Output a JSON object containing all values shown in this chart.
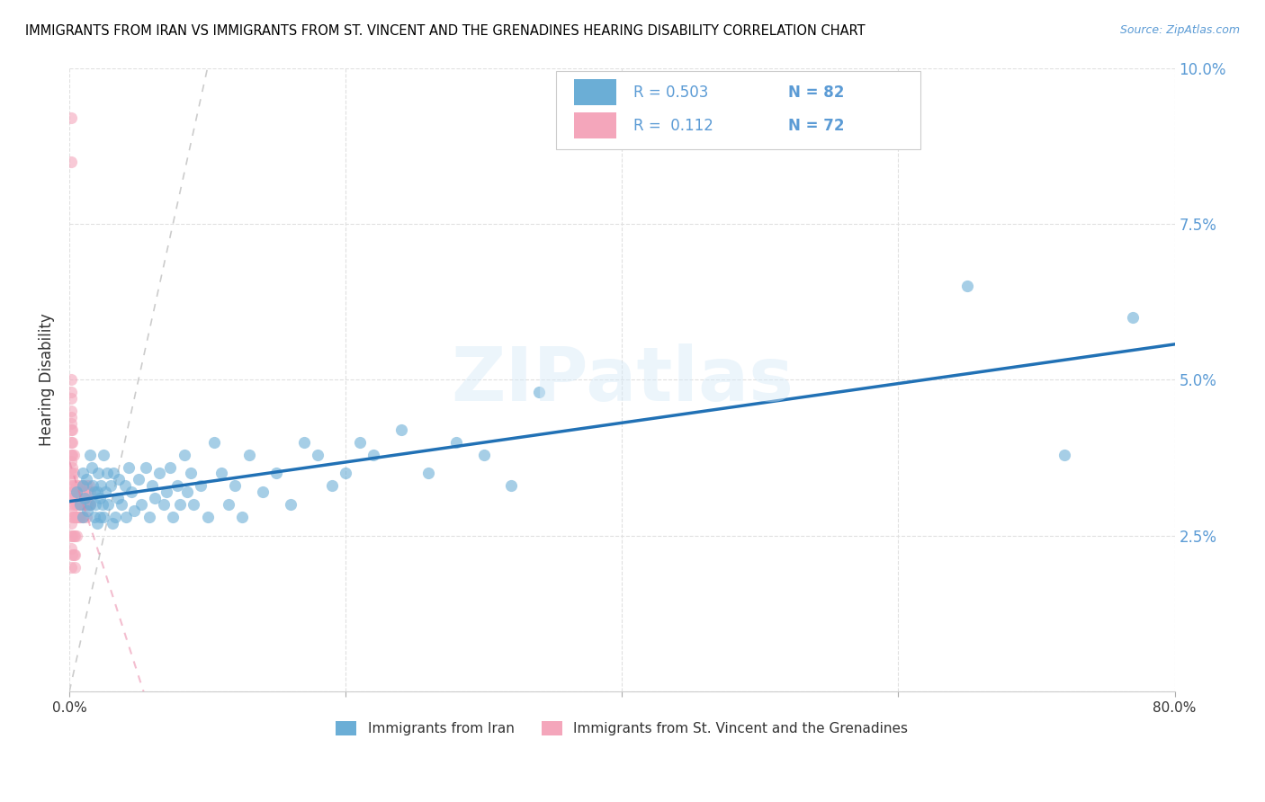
{
  "title": "IMMIGRANTS FROM IRAN VS IMMIGRANTS FROM ST. VINCENT AND THE GRENADINES HEARING DISABILITY CORRELATION CHART",
  "source": "Source: ZipAtlas.com",
  "ylabel": "Hearing Disability",
  "xlabel_blue": "Immigrants from Iran",
  "xlabel_pink": "Immigrants from St. Vincent and the Grenadines",
  "R_blue": 0.503,
  "N_blue": 82,
  "R_pink": 0.112,
  "N_pink": 72,
  "xlim": [
    0.0,
    0.8
  ],
  "ylim": [
    0.0,
    0.1
  ],
  "xticks": [
    0.0,
    0.2,
    0.4,
    0.6,
    0.8
  ],
  "yticks": [
    0.0,
    0.025,
    0.05,
    0.075,
    0.1
  ],
  "xtick_labels": [
    "0.0%",
    "",
    "",
    "",
    "80.0%"
  ],
  "ytick_labels_right": [
    "",
    "2.5%",
    "5.0%",
    "7.5%",
    "10.0%"
  ],
  "color_blue": "#6baed6",
  "color_pink": "#f4a6bb",
  "color_blue_line": "#2171b5",
  "color_pink_line": "#e87ea1",
  "color_diag": "#cccccc",
  "legend_text_color": "#5b9bd5",
  "watermark": "ZIPatlas",
  "blue_x": [
    0.005,
    0.008,
    0.01,
    0.01,
    0.01,
    0.011,
    0.012,
    0.013,
    0.015,
    0.015,
    0.016,
    0.017,
    0.018,
    0.018,
    0.019,
    0.02,
    0.02,
    0.021,
    0.022,
    0.022,
    0.023,
    0.024,
    0.025,
    0.025,
    0.026,
    0.027,
    0.028,
    0.03,
    0.031,
    0.032,
    0.033,
    0.035,
    0.036,
    0.038,
    0.04,
    0.041,
    0.043,
    0.045,
    0.047,
    0.05,
    0.052,
    0.055,
    0.058,
    0.06,
    0.062,
    0.065,
    0.068,
    0.07,
    0.073,
    0.075,
    0.078,
    0.08,
    0.083,
    0.085,
    0.088,
    0.09,
    0.095,
    0.1,
    0.105,
    0.11,
    0.115,
    0.12,
    0.125,
    0.13,
    0.14,
    0.15,
    0.16,
    0.17,
    0.18,
    0.19,
    0.2,
    0.21,
    0.22,
    0.24,
    0.26,
    0.28,
    0.3,
    0.32,
    0.34,
    0.65,
    0.72,
    0.77
  ],
  "blue_y": [
    0.032,
    0.03,
    0.033,
    0.028,
    0.035,
    0.031,
    0.034,
    0.029,
    0.038,
    0.03,
    0.036,
    0.033,
    0.032,
    0.028,
    0.03,
    0.027,
    0.032,
    0.035,
    0.031,
    0.028,
    0.033,
    0.03,
    0.038,
    0.028,
    0.032,
    0.035,
    0.03,
    0.033,
    0.027,
    0.035,
    0.028,
    0.031,
    0.034,
    0.03,
    0.033,
    0.028,
    0.036,
    0.032,
    0.029,
    0.034,
    0.03,
    0.036,
    0.028,
    0.033,
    0.031,
    0.035,
    0.03,
    0.032,
    0.036,
    0.028,
    0.033,
    0.03,
    0.038,
    0.032,
    0.035,
    0.03,
    0.033,
    0.028,
    0.04,
    0.035,
    0.03,
    0.033,
    0.028,
    0.038,
    0.032,
    0.035,
    0.03,
    0.04,
    0.038,
    0.033,
    0.035,
    0.04,
    0.038,
    0.042,
    0.035,
    0.04,
    0.038,
    0.033,
    0.048,
    0.065,
    0.038,
    0.06
  ],
  "pink_x": [
    0.001,
    0.001,
    0.001,
    0.001,
    0.001,
    0.001,
    0.001,
    0.001,
    0.001,
    0.001,
    0.001,
    0.001,
    0.001,
    0.001,
    0.001,
    0.001,
    0.001,
    0.001,
    0.001,
    0.001,
    0.002,
    0.002,
    0.002,
    0.002,
    0.002,
    0.002,
    0.002,
    0.002,
    0.002,
    0.002,
    0.003,
    0.003,
    0.003,
    0.003,
    0.003,
    0.003,
    0.003,
    0.004,
    0.004,
    0.004,
    0.004,
    0.004,
    0.004,
    0.005,
    0.005,
    0.005,
    0.005,
    0.006,
    0.006,
    0.006,
    0.007,
    0.007,
    0.007,
    0.008,
    0.008,
    0.008,
    0.009,
    0.009,
    0.01,
    0.01,
    0.01,
    0.011,
    0.011,
    0.012,
    0.012,
    0.012,
    0.013,
    0.013,
    0.014,
    0.014,
    0.015,
    0.015
  ],
  "pink_y": [
    0.085,
    0.092,
    0.042,
    0.044,
    0.048,
    0.05,
    0.045,
    0.047,
    0.04,
    0.043,
    0.038,
    0.035,
    0.037,
    0.033,
    0.031,
    0.029,
    0.027,
    0.025,
    0.023,
    0.02,
    0.042,
    0.04,
    0.038,
    0.036,
    0.034,
    0.032,
    0.03,
    0.028,
    0.025,
    0.022,
    0.038,
    0.035,
    0.033,
    0.031,
    0.028,
    0.025,
    0.022,
    0.032,
    0.03,
    0.028,
    0.025,
    0.022,
    0.02,
    0.033,
    0.03,
    0.028,
    0.025,
    0.032,
    0.03,
    0.028,
    0.033,
    0.03,
    0.028,
    0.032,
    0.03,
    0.028,
    0.032,
    0.03,
    0.033,
    0.03,
    0.028,
    0.032,
    0.03,
    0.033,
    0.03,
    0.028,
    0.032,
    0.03,
    0.033,
    0.03,
    0.032,
    0.03
  ]
}
